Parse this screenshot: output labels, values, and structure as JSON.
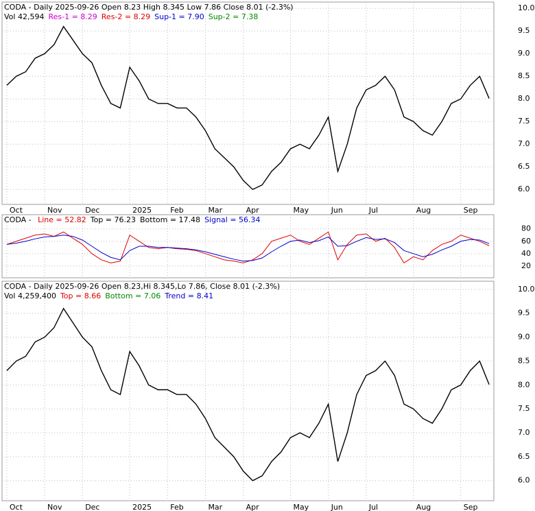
{
  "chart_data": [
    {
      "type": "line",
      "title": "CODA - Daily 2025-09-26 Open 8.23  High 8.345  Low 7.86  Close 8.01 (-2.3%)",
      "annotations": [
        {
          "text": "Vol 42,594",
          "color": "#000000"
        },
        {
          "text": "Res-1 = 8.29",
          "color": "#cc00cc"
        },
        {
          "text": "Res-2 = 8.29",
          "color": "#dd0000"
        },
        {
          "text": "Sup-1 = 7.90",
          "color": "#0000cc"
        },
        {
          "text": "Sup-2 = 7.38",
          "color": "#008800"
        }
      ],
      "categories": [
        "Oct",
        null,
        null,
        null,
        "Nov",
        null,
        null,
        null,
        "Dec",
        null,
        null,
        null,
        null,
        "2025",
        null,
        null,
        null,
        "Feb",
        null,
        null,
        null,
        "Mar",
        null,
        null,
        null,
        "Apr",
        null,
        null,
        null,
        null,
        "May",
        null,
        null,
        null,
        "Jun",
        null,
        null,
        null,
        "Jul",
        null,
        null,
        null,
        null,
        "Aug",
        null,
        null,
        null,
        null,
        "Sep",
        null,
        null,
        null
      ],
      "series": [
        {
          "name": "Close",
          "color": "#000000",
          "values": [
            8.3,
            8.5,
            8.6,
            8.9,
            9.0,
            9.2,
            9.6,
            9.3,
            9.0,
            8.8,
            8.3,
            7.9,
            7.8,
            8.7,
            8.4,
            8.0,
            7.9,
            7.9,
            7.8,
            7.8,
            7.6,
            7.3,
            6.9,
            6.7,
            6.5,
            6.2,
            6.0,
            6.1,
            6.4,
            6.6,
            6.9,
            7.0,
            6.9,
            7.2,
            7.6,
            6.4,
            7.0,
            7.8,
            8.2,
            8.3,
            8.5,
            8.2,
            7.6,
            7.5,
            7.3,
            7.2,
            7.5,
            7.9,
            8.0,
            8.3,
            8.5,
            8.01
          ]
        }
      ],
      "ylim": [
        5.67,
        10.14
      ],
      "yticks": [
        {
          "value": 6,
          "label": "6.0"
        },
        6.5,
        {
          "value": 7,
          "label": "7.0"
        },
        7.5,
        {
          "value": 8,
          "label": "8.0"
        },
        8.5,
        {
          "value": 9,
          "label": "9.0"
        },
        9.5,
        {
          "value": 10,
          "label": "10.0"
        }
      ],
      "grid": true
    },
    {
      "type": "line",
      "title": "CODA - ",
      "annotations": [
        {
          "text": "Line = 52.82",
          "color": "#dd0000"
        },
        {
          "text": "Top = 76.23",
          "color": "#000000"
        },
        {
          "text": "Bottom = 17.48",
          "color": "#000000"
        },
        {
          "text": "Signal = 56.34",
          "color": "#0000cc"
        }
      ],
      "categories": [
        "Oct",
        null,
        null,
        null,
        "Nov",
        null,
        null,
        null,
        "Dec",
        null,
        null,
        null,
        null,
        "2025",
        null,
        null,
        null,
        "Feb",
        null,
        null,
        null,
        "Mar",
        null,
        null,
        null,
        "Apr",
        null,
        null,
        null,
        null,
        "May",
        null,
        null,
        null,
        "Jun",
        null,
        null,
        null,
        "Jul",
        null,
        null,
        null,
        null,
        "Aug",
        null,
        null,
        null,
        null,
        "Sep",
        null,
        null,
        null
      ],
      "series": [
        {
          "name": "Line",
          "color": "#dd0000",
          "values": [
            55,
            60,
            65,
            70,
            72,
            68,
            75,
            65,
            55,
            40,
            30,
            25,
            28,
            70,
            60,
            50,
            48,
            50,
            48,
            47,
            45,
            40,
            35,
            30,
            28,
            25,
            30,
            40,
            60,
            65,
            70,
            60,
            55,
            65,
            75,
            30,
            55,
            70,
            72,
            60,
            65,
            50,
            25,
            35,
            30,
            45,
            55,
            60,
            70,
            65,
            60,
            52.82
          ]
        },
        {
          "name": "Signal",
          "color": "#0000cc",
          "values": [
            55,
            57,
            60,
            64,
            67,
            68,
            70,
            68,
            62,
            52,
            42,
            34,
            30,
            45,
            52,
            52,
            50,
            50,
            49,
            48,
            46,
            43,
            39,
            35,
            31,
            28,
            29,
            33,
            43,
            52,
            60,
            62,
            58,
            61,
            67,
            52,
            53,
            60,
            66,
            63,
            64,
            58,
            45,
            40,
            35,
            39,
            46,
            52,
            60,
            63,
            62,
            56.34
          ]
        }
      ],
      "ylim": [
        1,
        103
      ],
      "yticks": [
        20,
        40,
        60,
        80
      ],
      "grid": true
    },
    {
      "type": "line",
      "title": "CODA - Daily 2025-09-26 Open 8.23,Hi 8.345,Lo 7.86, Close 8.01 (-2.3%)",
      "annotations": [
        {
          "text": "Vol 4,259,400",
          "color": "#000000"
        },
        {
          "text": "Top = 8.66",
          "color": "#dd0000"
        },
        {
          "text": "Bottom = 7.06",
          "color": "#008800"
        },
        {
          "text": "Trend = 8.41",
          "color": "#0000cc"
        }
      ],
      "categories": [
        "Oct",
        null,
        null,
        null,
        "Nov",
        null,
        null,
        null,
        "Dec",
        null,
        null,
        null,
        null,
        "2025",
        null,
        null,
        null,
        "Feb",
        null,
        null,
        null,
        "Mar",
        null,
        null,
        null,
        "Apr",
        null,
        null,
        null,
        null,
        "May",
        null,
        null,
        null,
        "Jun",
        null,
        null,
        null,
        "Jul",
        null,
        null,
        null,
        null,
        "Aug",
        null,
        null,
        null,
        null,
        "Sep",
        null,
        null,
        null
      ],
      "series": [
        {
          "name": "Close",
          "color": "#000000",
          "values": [
            8.3,
            8.5,
            8.6,
            8.9,
            9.0,
            9.2,
            9.6,
            9.3,
            9.0,
            8.8,
            8.3,
            7.9,
            7.8,
            8.7,
            8.4,
            8.0,
            7.9,
            7.9,
            7.8,
            7.8,
            7.6,
            7.3,
            6.9,
            6.7,
            6.5,
            6.2,
            6.0,
            6.1,
            6.4,
            6.6,
            6.9,
            7.0,
            6.9,
            7.2,
            7.6,
            6.4,
            7.0,
            7.8,
            8.2,
            8.3,
            8.5,
            8.2,
            7.6,
            7.5,
            7.3,
            7.2,
            7.5,
            7.9,
            8.0,
            8.3,
            8.5,
            8.01
          ]
        }
      ],
      "ylim": [
        5.58,
        10.17
      ],
      "yticks": [
        {
          "value": 6,
          "label": "6.0"
        },
        6.5,
        {
          "value": 7,
          "label": "7.0"
        },
        7.5,
        {
          "value": 8,
          "label": "8.0"
        },
        8.5,
        {
          "value": 9,
          "label": "9.0"
        },
        9.5,
        {
          "value": 10,
          "label": "10.0"
        }
      ],
      "grid": true
    }
  ]
}
